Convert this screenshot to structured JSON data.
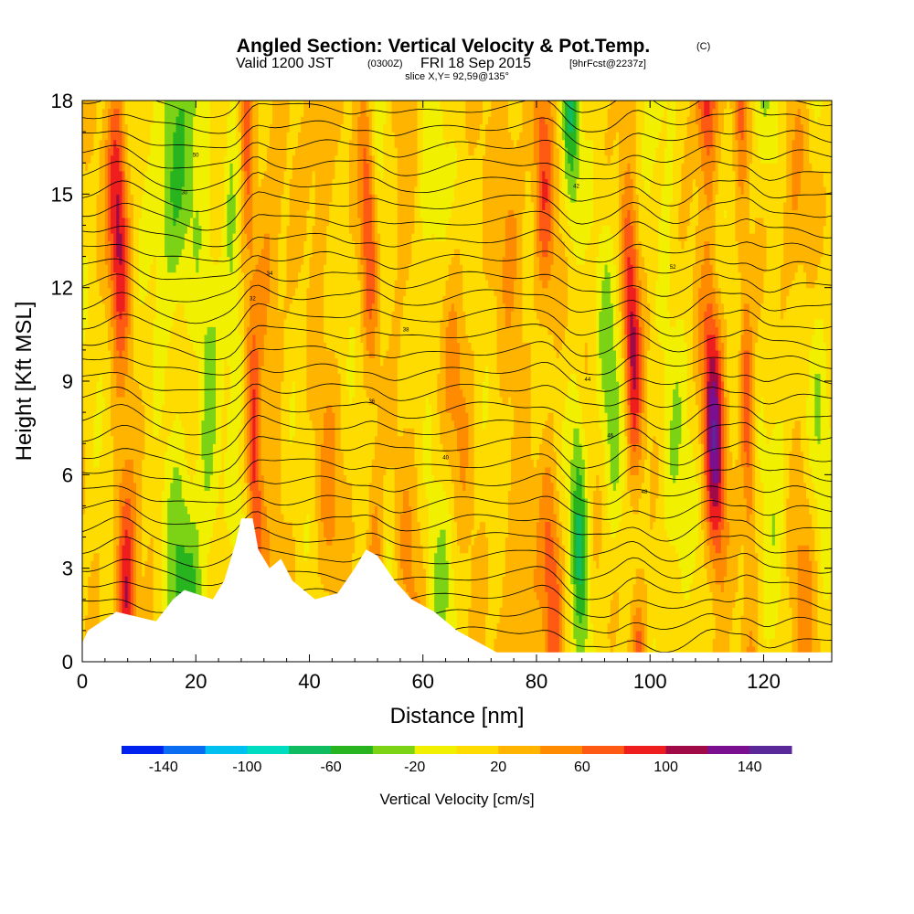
{
  "title": {
    "main": "Angled Section: Vertical Velocity & Pot.Temp.",
    "main_units": "(C)",
    "valid_prefix": "Valid 1200 JST",
    "valid_utc": "(0300Z)",
    "valid_date": "FRI 18 Sep 2015",
    "forecast": "[9hrFcst@2237z]",
    "slice": "slice X,Y= 92,59@135°"
  },
  "chart_data": {
    "type": "heatmap",
    "xlabel": "Distance [nm]",
    "ylabel": "Height [Kft MSL]",
    "xlim": [
      0,
      132
    ],
    "ylim": [
      0,
      18
    ],
    "xticks": [
      0,
      20,
      40,
      60,
      80,
      100,
      120
    ],
    "yticks": [
      0,
      3,
      6,
      9,
      12,
      15,
      18
    ],
    "color_levels": [
      -160,
      -140,
      -120,
      -100,
      -80,
      -60,
      -40,
      -20,
      0,
      20,
      40,
      60,
      80,
      100,
      120,
      140,
      160
    ],
    "colors": [
      "#0022ee",
      "#0a6cf0",
      "#00c0f0",
      "#00dcc0",
      "#10bc60",
      "#28b41e",
      "#7cd214",
      "#f0f000",
      "#ffdc00",
      "#ffb400",
      "#ff8c00",
      "#ff5a14",
      "#ee1e1e",
      "#a00a46",
      "#7a1090",
      "#5a2898"
    ],
    "colorbar_ticks": [
      -140,
      -100,
      -60,
      -20,
      20,
      60,
      100,
      140
    ],
    "colorbar_label": "Vertical Velocity [cm/s]",
    "theta_contour_labels": [
      "30",
      "32",
      "34",
      "36",
      "38",
      "40",
      "42",
      "44",
      "46",
      "48",
      "50",
      "52",
      "54"
    ],
    "updraft_columns": [
      {
        "x": 7,
        "w": 1.8,
        "v": 95
      },
      {
        "x": 30,
        "w": 1.2,
        "v": 70
      },
      {
        "x": 33,
        "w": 3,
        "v": 35
      },
      {
        "x": 43,
        "w": 2.5,
        "v": 30
      },
      {
        "x": 51,
        "w": 1.5,
        "v": 70
      },
      {
        "x": 57,
        "w": 4,
        "v": 30
      },
      {
        "x": 66,
        "w": 3,
        "v": 30
      },
      {
        "x": 76,
        "w": 3,
        "v": 30
      },
      {
        "x": 82,
        "w": 1.8,
        "v": 60
      },
      {
        "x": 97,
        "w": 1.5,
        "v": 90
      },
      {
        "x": 111,
        "w": 1.8,
        "v": 115
      },
      {
        "x": 117,
        "w": 1.2,
        "v": 70
      },
      {
        "x": 126,
        "w": 3,
        "v": 30
      }
    ],
    "downdraft_columns": [
      {
        "x": 17,
        "w": 3.5,
        "v": -60
      },
      {
        "x": 22,
        "w": 2,
        "v": -45
      },
      {
        "x": 27,
        "w": 1.5,
        "v": -45
      },
      {
        "x": 53,
        "w": 2.5,
        "v": -30
      },
      {
        "x": 62,
        "w": 3,
        "v": -40
      },
      {
        "x": 87,
        "w": 1.5,
        "v": -70
      },
      {
        "x": 93,
        "w": 2,
        "v": -40
      },
      {
        "x": 104,
        "w": 2.5,
        "v": -30
      },
      {
        "x": 122,
        "w": 2.5,
        "v": -30
      },
      {
        "x": 130,
        "w": 2,
        "v": -30
      }
    ],
    "terrain_kft": [
      [
        0,
        0.6
      ],
      [
        1,
        1
      ],
      [
        6,
        1.6
      ],
      [
        13,
        1.3
      ],
      [
        16,
        2
      ],
      [
        18,
        2.3
      ],
      [
        23,
        2
      ],
      [
        25,
        2.6
      ],
      [
        27,
        3.8
      ],
      [
        28,
        4.6
      ],
      [
        30,
        4.6
      ],
      [
        31,
        3.6
      ],
      [
        33,
        3
      ],
      [
        35,
        3.3
      ],
      [
        37,
        2.6
      ],
      [
        41,
        2
      ],
      [
        45,
        2.2
      ],
      [
        48,
        3
      ],
      [
        50,
        3.6
      ],
      [
        52,
        3.4
      ],
      [
        55,
        2.6
      ],
      [
        58,
        2
      ],
      [
        62,
        1.6
      ],
      [
        66,
        1
      ],
      [
        70,
        0.6
      ],
      [
        73,
        0.3
      ],
      [
        132,
        0.3
      ]
    ]
  }
}
